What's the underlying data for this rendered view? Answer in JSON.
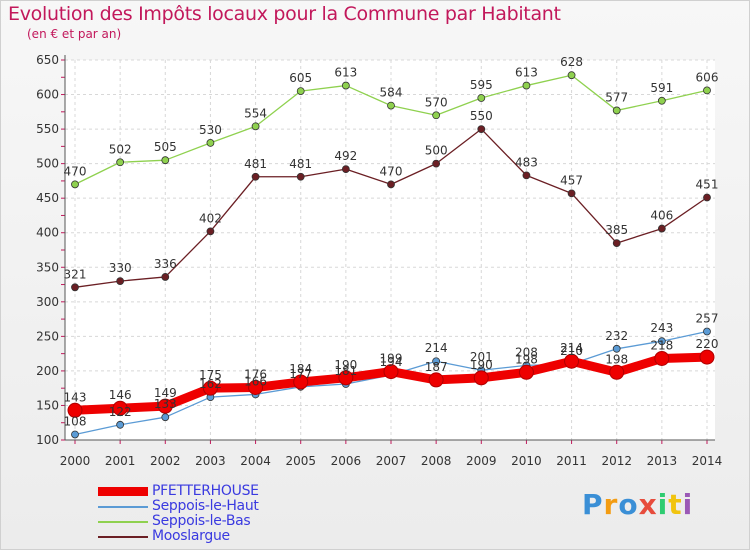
{
  "chart_data": {
    "type": "line",
    "title": "Evolution des Impôts locaux pour la Commune par Habitant",
    "subtitle": "(en € et par an)",
    "x": [
      "2000",
      "2001",
      "2002",
      "2003",
      "2004",
      "2005",
      "2006",
      "2007",
      "2008",
      "2009",
      "2010",
      "2011",
      "2012",
      "2013",
      "2014"
    ],
    "ylim": [
      100,
      650
    ],
    "yticks": [
      100,
      150,
      200,
      250,
      300,
      350,
      400,
      450,
      500,
      550,
      600,
      650
    ],
    "series": [
      {
        "name": "PFETTERHOUSE",
        "color": "#ee0000",
        "values": [
          143,
          146,
          149,
          175,
          176,
          184,
          190,
          199,
          187,
          190,
          198,
          214,
          198,
          218,
          220
        ]
      },
      {
        "name": "Seppois-le-Haut",
        "color": "#5b9bd5",
        "values": [
          108,
          122,
          133,
          162,
          166,
          177,
          181,
          194,
          214,
          201,
          208,
          210,
          232,
          243,
          257
        ]
      },
      {
        "name": "Seppois-le-Bas",
        "color": "#8fd14f",
        "values": [
          470,
          502,
          505,
          530,
          554,
          605,
          613,
          584,
          570,
          595,
          613,
          628,
          577,
          591,
          606
        ]
      },
      {
        "name": "Mooslargue",
        "color": "#6b1f24",
        "values": [
          321,
          330,
          336,
          402,
          481,
          481,
          492,
          470,
          500,
          550,
          483,
          457,
          385,
          406,
          451
        ]
      }
    ]
  },
  "logo": {
    "letters": [
      "P",
      "r",
      "o",
      "x",
      "i",
      "t",
      "i"
    ],
    "colors": [
      "#3a8fd6",
      "#f39c12",
      "#3a8fd6",
      "#e74c3c",
      "#2ecc71",
      "#f1c40f",
      "#9b59b6"
    ]
  }
}
